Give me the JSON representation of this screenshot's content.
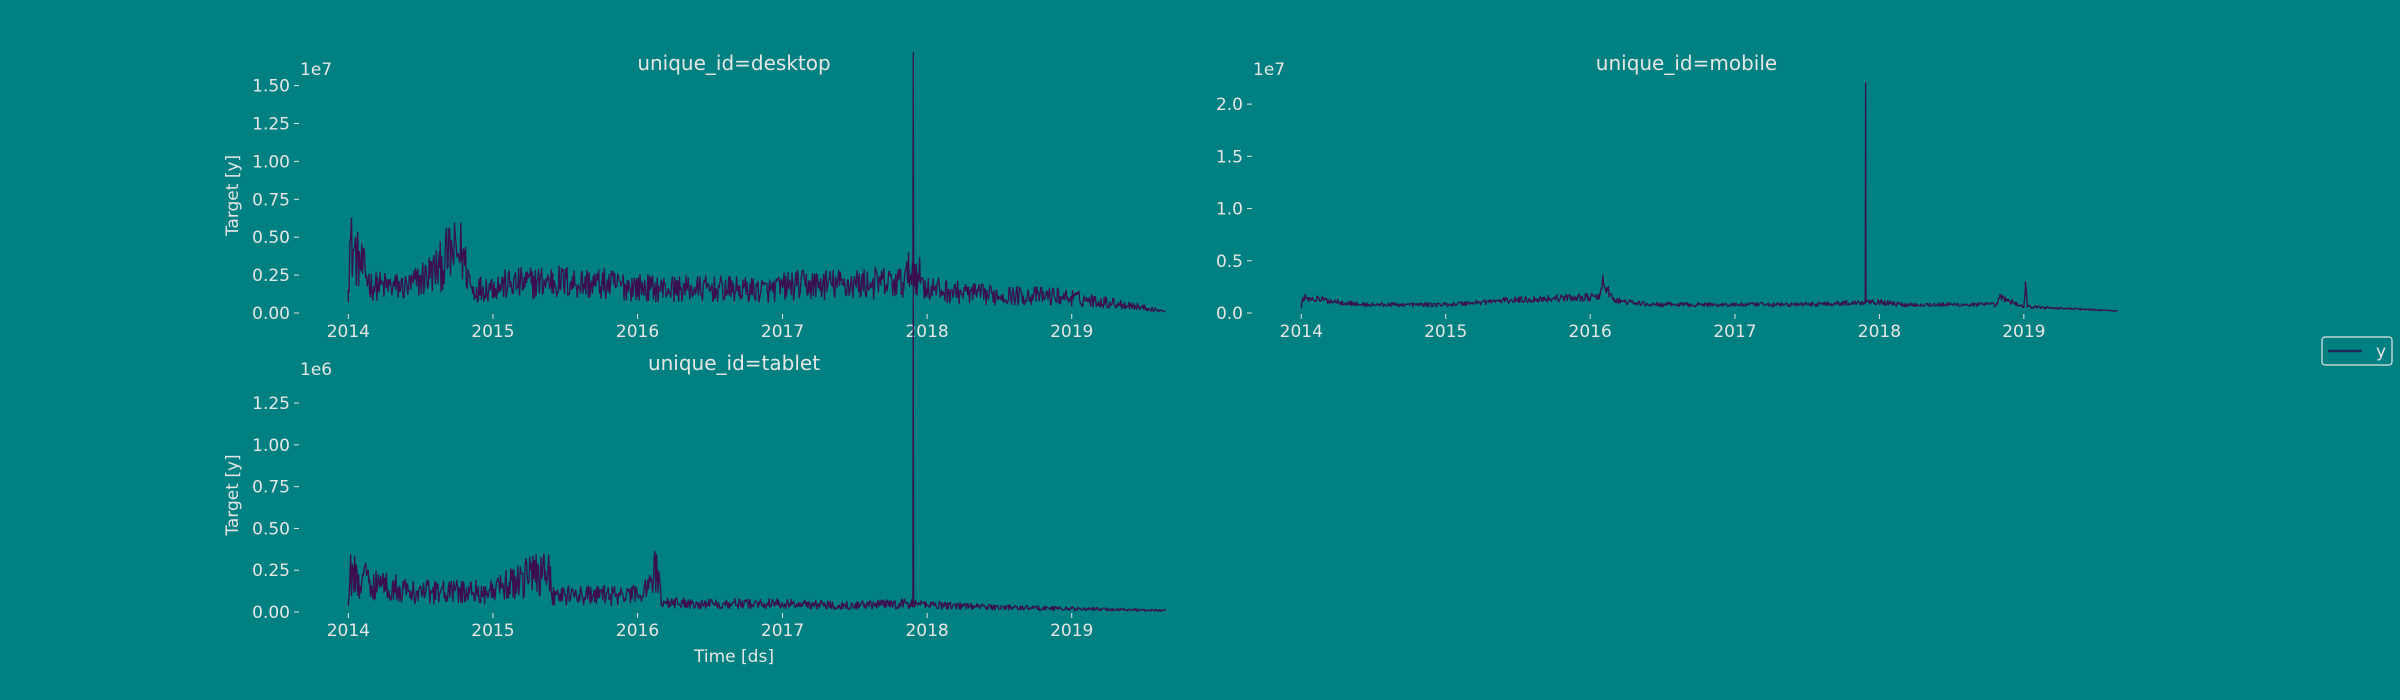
{
  "figure": {
    "background": "#008080",
    "line_color": "#3b0f4f",
    "legend_line_color": "#1f2a5a",
    "text_color": "#e6e6e6"
  },
  "legend": {
    "entries": [
      "y"
    ],
    "placement": "center-right"
  },
  "chart_data": [
    {
      "type": "line",
      "title": "unique_id=desktop",
      "xlabel": "",
      "ylabel": "Target [y]",
      "scale_label": "1e7",
      "x_ticks": [
        "2014",
        "2015",
        "2016",
        "2017",
        "2018",
        "2019"
      ],
      "y_ticks": [
        "0.00",
        "0.25",
        "0.50",
        "0.75",
        "1.00",
        "1.25",
        "1.50"
      ],
      "ylim": [
        0,
        1.55
      ],
      "xlim": [
        "2013-09-01",
        "2019-09-01"
      ],
      "series": [
        {
          "name": "y",
          "x": [
            "2014-01-01",
            "2014-01-05",
            "2014-03-01",
            "2014-06-01",
            "2014-08-20",
            "2014-09-10",
            "2014-10-15",
            "2014-11-10",
            "2015-01-01",
            "2015-06-01",
            "2015-12-01",
            "2016-02-10",
            "2016-06-01",
            "2016-12-01",
            "2017-01-15",
            "2017-06-01",
            "2017-11-01",
            "2017-11-26",
            "2017-11-27",
            "2017-11-28",
            "2018-01-01",
            "2018-03-01",
            "2018-06-01",
            "2018-12-01",
            "2019-03-01",
            "2019-06-01",
            "2019-08-25"
          ],
          "y": [
            0.15,
            0.45,
            0.18,
            0.17,
            0.3,
            0.38,
            0.4,
            0.15,
            0.18,
            0.21,
            0.18,
            0.16,
            0.16,
            0.15,
            0.18,
            0.19,
            0.2,
            0.3,
            1.48,
            0.3,
            0.16,
            0.14,
            0.12,
            0.11,
            0.08,
            0.05,
            0.01
          ]
        }
      ]
    },
    {
      "type": "line",
      "title": "unique_id=mobile",
      "xlabel": "",
      "ylabel": "",
      "scale_label": "1e7",
      "x_ticks": [
        "2014",
        "2015",
        "2016",
        "2017",
        "2018",
        "2019"
      ],
      "y_ticks": [
        "0.0",
        "0.5",
        "1.0",
        "1.5",
        "2.0"
      ],
      "ylim": [
        0,
        2.25
      ],
      "xlim": [
        "2013-09-01",
        "2019-09-01"
      ],
      "series": [
        {
          "name": "y",
          "x": [
            "2014-01-01",
            "2014-01-05",
            "2014-06-01",
            "2015-01-01",
            "2015-06-01",
            "2015-12-01",
            "2016-01-25",
            "2016-02-01",
            "2016-03-01",
            "2016-06-01",
            "2017-01-01",
            "2017-06-01",
            "2017-11-26",
            "2017-11-27",
            "2017-11-28",
            "2018-03-01",
            "2018-10-25",
            "2018-11-01",
            "2019-01-01",
            "2019-01-05",
            "2019-01-10",
            "2019-08-25"
          ],
          "y": [
            0.05,
            0.15,
            0.08,
            0.08,
            0.12,
            0.15,
            0.15,
            0.3,
            0.12,
            0.08,
            0.08,
            0.08,
            0.1,
            2.2,
            0.12,
            0.08,
            0.08,
            0.15,
            0.06,
            0.3,
            0.06,
            0.02
          ]
        }
      ]
    },
    {
      "type": "line",
      "title": "unique_id=tablet",
      "xlabel": "Time [ds]",
      "ylabel": "Target [y]",
      "scale_label": "1e6",
      "x_ticks": [
        "2014",
        "2015",
        "2016",
        "2017",
        "2018",
        "2019"
      ],
      "y_ticks": [
        "0.00",
        "0.25",
        "0.50",
        "0.75",
        "1.00",
        "1.25"
      ],
      "ylim": [
        0,
        1.4
      ],
      "xlim": [
        "2013-09-01",
        "2019-09-01"
      ],
      "series": [
        {
          "name": "y",
          "x": [
            "2014-01-01",
            "2014-01-05",
            "2014-06-01",
            "2015-01-01",
            "2015-05-20",
            "2015-06-01",
            "2016-01-01",
            "2016-02-20",
            "2016-03-01",
            "2016-06-01",
            "2017-01-01",
            "2017-06-01",
            "2017-11-26",
            "2017-11-27",
            "2017-11-28",
            "2018-03-01",
            "2018-06-01",
            "2019-01-01",
            "2019-08-25"
          ],
          "y": [
            0.05,
            0.22,
            0.12,
            0.12,
            0.27,
            0.1,
            0.1,
            0.25,
            0.06,
            0.05,
            0.05,
            0.04,
            0.05,
            1.37,
            0.05,
            0.04,
            0.03,
            0.02,
            0.01
          ]
        }
      ]
    }
  ]
}
